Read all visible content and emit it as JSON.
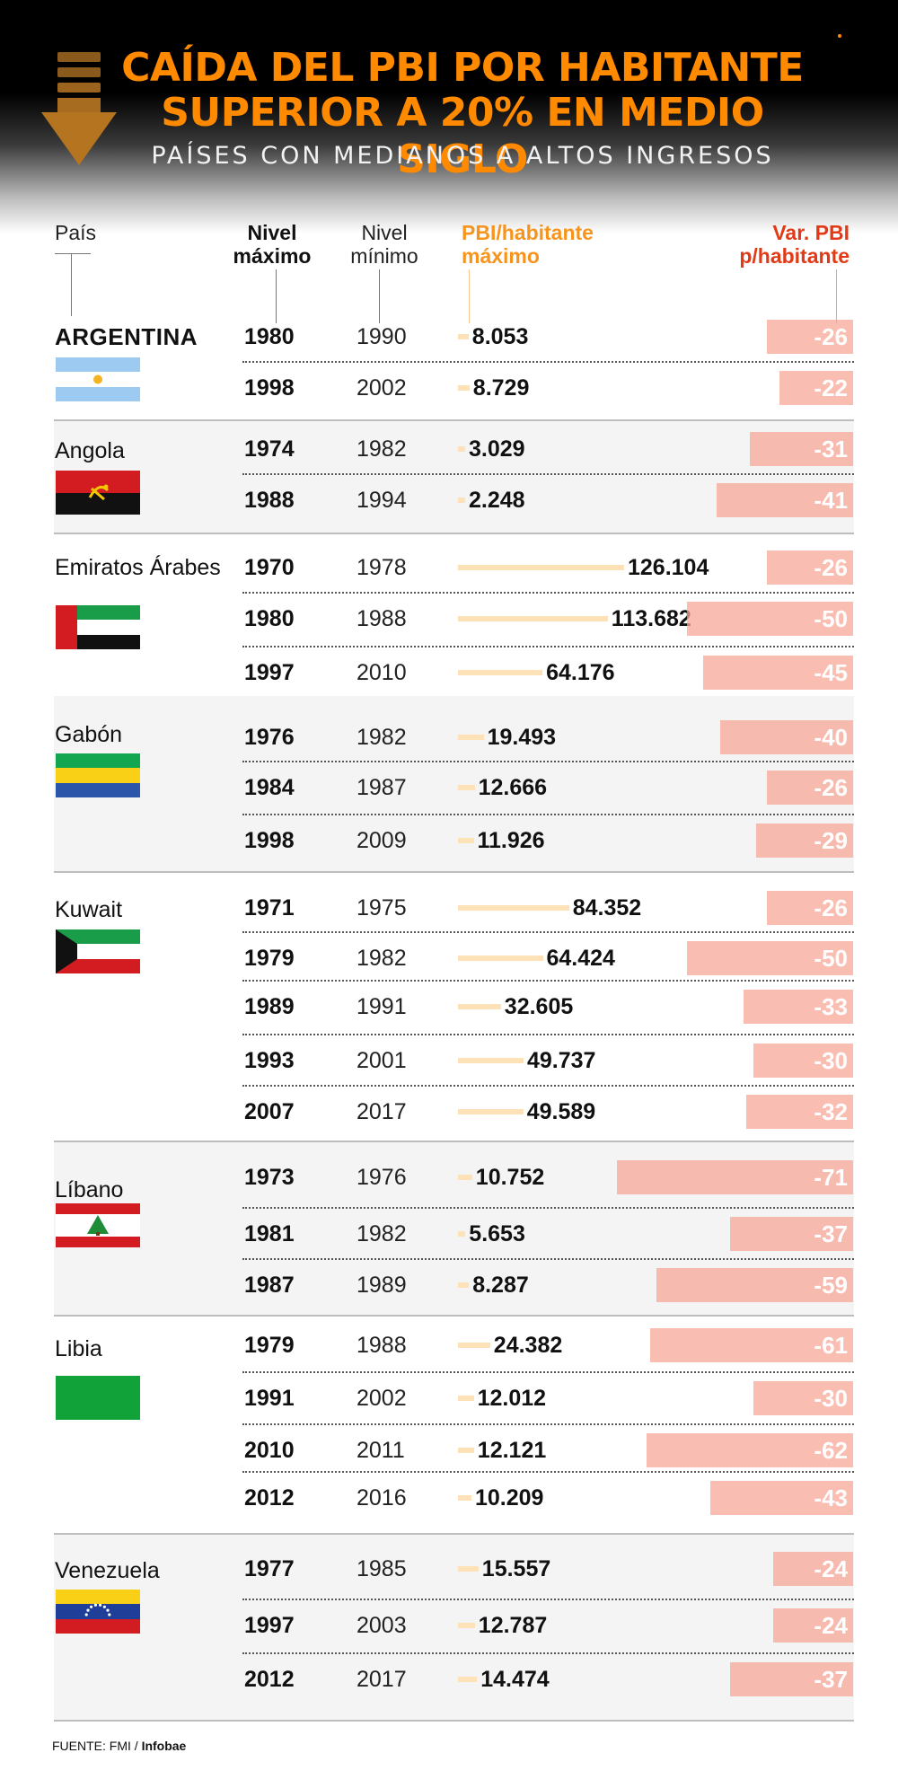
{
  "title_line1": "CAÍDA DEL PBI POR HABITANTE",
  "title_line2": "SUPERIOR A 20% EN MEDIO SIGLO",
  "subtitle": "PAÍSES CON MEDIANOS A ALTOS INGRESOS",
  "columns": {
    "pais": "País",
    "nivel_max_1": "Nivel",
    "nivel_max_2": "máximo",
    "nivel_min_1": "Nivel",
    "nivel_min_2": "mínimo",
    "pbi_1": "PBI/habitante",
    "pbi_2": "máximo",
    "var_1": "Var. PBI",
    "var_2": "p/habitante"
  },
  "source_label": "FUENTE: FMI / ",
  "source_name": "Infobae",
  "colors": {
    "title": "#ff8a00",
    "gdp_bar": "#fde2b8",
    "var_bar": "#f8a798",
    "header_orange": "#f7941d",
    "header_red": "#e23a16"
  },
  "chart_data": {
    "type": "table",
    "title": "CAÍDA DEL PBI POR HABITANTE SUPERIOR A 20% EN MEDIO SIGLO",
    "subtitle": "PAÍSES CON MEDIANOS A ALTOS INGRESOS",
    "columns": [
      "País",
      "Nivel máximo",
      "Nivel mínimo",
      "PBI/habitante máximo",
      "Var. PBI p/habitante"
    ],
    "groups": [
      {
        "country": "ARGENTINA",
        "flag": "argentina-flag",
        "rows": [
          {
            "max": "1980",
            "min": "1990",
            "gdp": 8053,
            "gdp_label": "8.053",
            "var": -26,
            "var_label": "-26"
          },
          {
            "max": "1998",
            "min": "2002",
            "gdp": 8729,
            "gdp_label": "8.729",
            "var": -22,
            "var_label": "-22"
          }
        ]
      },
      {
        "country": "Angola",
        "flag": "angola-flag",
        "rows": [
          {
            "max": "1974",
            "min": "1982",
            "gdp": 3029,
            "gdp_label": "3.029",
            "var": -31,
            "var_label": "-31"
          },
          {
            "max": "1988",
            "min": "1994",
            "gdp": 2248,
            "gdp_label": "2.248",
            "var": -41,
            "var_label": "-41"
          }
        ]
      },
      {
        "country": "Emiratos Árabes",
        "flag": "uae-flag",
        "rows": [
          {
            "max": "1970",
            "min": "1978",
            "gdp": 126104,
            "gdp_label": "126.104",
            "var": -26,
            "var_label": "-26"
          },
          {
            "max": "1980",
            "min": "1988",
            "gdp": 113682,
            "gdp_label": "113.682",
            "var": -50,
            "var_label": "-50"
          },
          {
            "max": "1997",
            "min": "2010",
            "gdp": 64176,
            "gdp_label": "64.176",
            "var": -45,
            "var_label": "-45"
          }
        ]
      },
      {
        "country": "Gabón",
        "flag": "gabon-flag",
        "rows": [
          {
            "max": "1976",
            "min": "1982",
            "gdp": 19493,
            "gdp_label": "19.493",
            "var": -40,
            "var_label": "-40"
          },
          {
            "max": "1984",
            "min": "1987",
            "gdp": 12666,
            "gdp_label": "12.666",
            "var": -26,
            "var_label": "-26"
          },
          {
            "max": "1998",
            "min": "2009",
            "gdp": 11926,
            "gdp_label": "11.926",
            "var": -29,
            "var_label": "-29"
          }
        ]
      },
      {
        "country": "Kuwait",
        "flag": "kuwait-flag",
        "rows": [
          {
            "max": "1971",
            "min": "1975",
            "gdp": 84352,
            "gdp_label": "84.352",
            "var": -26,
            "var_label": "-26"
          },
          {
            "max": "1979",
            "min": "1982",
            "gdp": 64424,
            "gdp_label": "64.424",
            "var": -50,
            "var_label": "-50"
          },
          {
            "max": "1989",
            "min": "1991",
            "gdp": 32605,
            "gdp_label": "32.605",
            "var": -33,
            "var_label": "-33"
          },
          {
            "max": "1993",
            "min": "2001",
            "gdp": 49737,
            "gdp_label": "49.737",
            "var": -30,
            "var_label": "-30"
          },
          {
            "max": "2007",
            "min": "2017",
            "gdp": 49589,
            "gdp_label": "49.589",
            "var": -32,
            "var_label": "-32"
          }
        ]
      },
      {
        "country": "Líbano",
        "flag": "lebanon-flag",
        "rows": [
          {
            "max": "1973",
            "min": "1976",
            "gdp": 10752,
            "gdp_label": "10.752",
            "var": -71,
            "var_label": "-71"
          },
          {
            "max": "1981",
            "min": "1982",
            "gdp": 5653,
            "gdp_label": "5.653",
            "var": -37,
            "var_label": "-37"
          },
          {
            "max": "1987",
            "min": "1989",
            "gdp": 8287,
            "gdp_label": "8.287",
            "var": -59,
            "var_label": "-59"
          }
        ]
      },
      {
        "country": "Libia",
        "flag": "libya-flag",
        "rows": [
          {
            "max": "1979",
            "min": "1988",
            "gdp": 24382,
            "gdp_label": "24.382",
            "var": -61,
            "var_label": "-61"
          },
          {
            "max": "1991",
            "min": "2002",
            "gdp": 12012,
            "gdp_label": "12.012",
            "var": -30,
            "var_label": "-30"
          },
          {
            "max": "2010",
            "min": "2011",
            "gdp": 12121,
            "gdp_label": "12.121",
            "var": -62,
            "var_label": "-62"
          },
          {
            "max": "2012",
            "min": "2016",
            "gdp": 10209,
            "gdp_label": "10.209",
            "var": -43,
            "var_label": "-43"
          }
        ]
      },
      {
        "country": "Venezuela",
        "flag": "venezuela-flag",
        "rows": [
          {
            "max": "1977",
            "min": "1985",
            "gdp": 15557,
            "gdp_label": "15.557",
            "var": -24,
            "var_label": "-24"
          },
          {
            "max": "1997",
            "min": "2003",
            "gdp": 12787,
            "gdp_label": "12.787",
            "var": -24,
            "var_label": "-24"
          },
          {
            "max": "2012",
            "min": "2017",
            "gdp": 14474,
            "gdp_label": "14.474",
            "var": -37,
            "var_label": "-37"
          }
        ]
      }
    ]
  }
}
